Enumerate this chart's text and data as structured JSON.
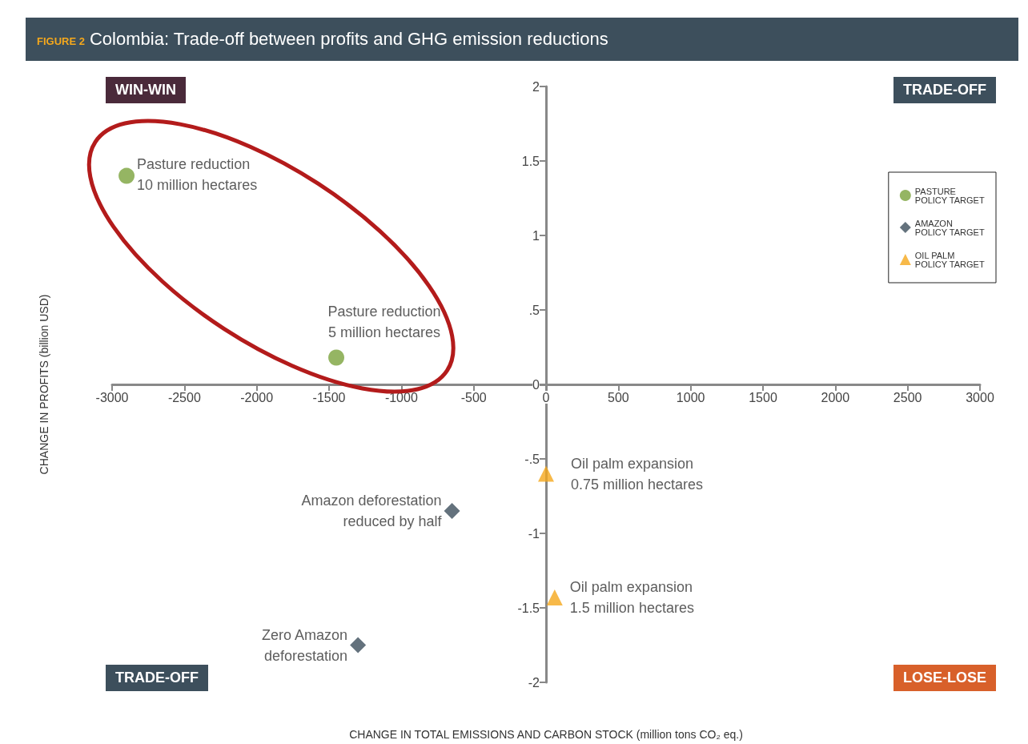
{
  "chart_data": {
    "type": "scatter",
    "title": "Colombia: Trade-off between profits and GHG emission reductions",
    "subtitle": "FIGURE 2",
    "xlabel": "CHANGE IN TOTAL EMISSIONS AND CARBON STOCK (million tons CO₂ eq.)",
    "ylabel": "CHANGE IN PROFITS (billion USD)",
    "series": [
      {
        "name": "PASTURE POLICY TARGET",
        "color": "#7aa33c",
        "marker": "circle",
        "x": [
          -2900,
          -1450
        ],
        "values": [
          1.4,
          0.18
        ]
      },
      {
        "name": "AMAZON POLICY TARGET",
        "color": "#3d4f5c",
        "marker": "diamond",
        "x": [
          -650,
          -1300
        ],
        "values": [
          -0.85,
          -1.75
        ]
      },
      {
        "name": "OIL PALM POLICY TARGET",
        "color": "#f5a81c",
        "marker": "triangle",
        "x": [
          0,
          60
        ],
        "values": [
          -0.6,
          -1.43
        ]
      }
    ],
    "xlim": [
      -3000,
      3000
    ],
    "xticks": [
      -3000,
      -2500,
      -2000,
      -1500,
      -1000,
      -500,
      0,
      500,
      1000,
      1500,
      2000,
      2500,
      3000
    ],
    "ylim": [
      -2,
      2
    ],
    "yticks": [
      -2,
      -1.5,
      -1,
      {
        "value": -0.5,
        "label": "-.5"
      },
      0,
      {
        "value": 0.5,
        "label": ".5"
      },
      1,
      1.5,
      2
    ],
    "grid": false,
    "legend": "top right",
    "annotations": [
      {
        "text": "Pasture reduction\n10 million hectares",
        "x": -2900,
        "y": 1.4
      },
      {
        "text": "Pasture reduction\n5 million hectares",
        "x": -1450,
        "y": 0.18
      },
      {
        "text": "Amazon deforestation\nreduced by half",
        "x": -650,
        "y": -0.85
      },
      {
        "text": "Zero Amazon\ndeforestation",
        "x": -1300,
        "y": -1.75
      },
      {
        "text": "Oil palm expansion\n0.75 million hectares",
        "x": 0,
        "y": -0.6
      },
      {
        "text": "Oil palm expansion\n1.5 million hectares",
        "x": 60,
        "y": -1.43
      },
      "WIN-WIN",
      "TRADE-OFF",
      "TRADE-OFF",
      "LOSE-LOSE"
    ]
  }
}
